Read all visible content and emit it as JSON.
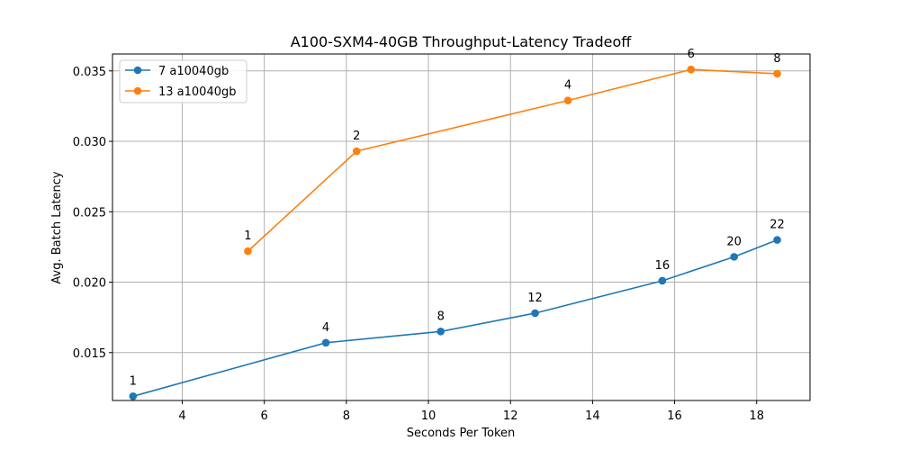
{
  "chart_data": {
    "type": "line",
    "title": "A100-SXM4-40GB Throughput-Latency Tradeoff",
    "xlabel": "Seconds Per Token",
    "ylabel": "Avg. Batch Latency",
    "xlim": [
      2.3,
      19.3
    ],
    "ylim": [
      0.0116,
      0.0362
    ],
    "xticks": [
      4,
      6,
      8,
      10,
      12,
      14,
      16,
      18
    ],
    "yticks": [
      0.015,
      0.02,
      0.025,
      0.03,
      0.035
    ],
    "ytick_labels": [
      "0.015",
      "0.020",
      "0.025",
      "0.030",
      "0.035"
    ],
    "grid": true,
    "legend_position": "top-left",
    "series": [
      {
        "name": "7 a10040gb",
        "color": "#1f77b4",
        "x": [
          2.8,
          7.5,
          10.3,
          12.6,
          15.7,
          17.45,
          18.5
        ],
        "y": [
          0.0119,
          0.0157,
          0.0165,
          0.0178,
          0.0201,
          0.0218,
          0.023
        ],
        "labels": [
          "1",
          "4",
          "8",
          "12",
          "16",
          "20",
          "22"
        ]
      },
      {
        "name": "13 a10040gb",
        "color": "#ff7f0e",
        "x": [
          5.6,
          8.25,
          13.4,
          16.4,
          18.5
        ],
        "y": [
          0.0222,
          0.0293,
          0.0329,
          0.0351,
          0.0348
        ],
        "labels": [
          "1",
          "2",
          "4",
          "6",
          "8"
        ]
      }
    ]
  }
}
